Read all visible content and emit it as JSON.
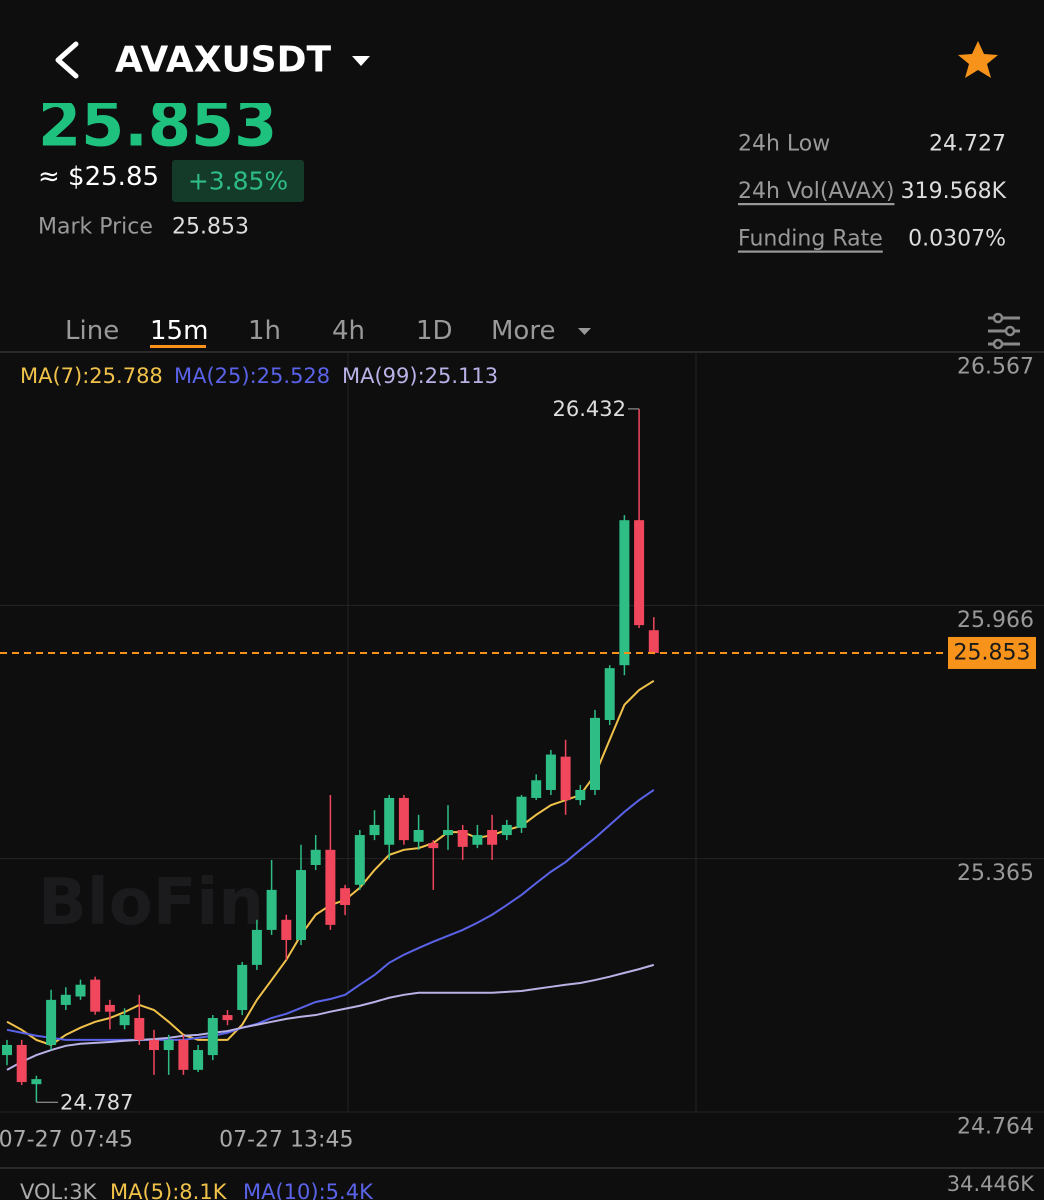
{
  "header": {
    "symbol": "AVAXUSDT",
    "last_price": "25.853",
    "usd_price": "≈ $25.85",
    "change": "+3.85%",
    "mark_price_label": "Mark Price",
    "mark_price": "25.853"
  },
  "stats": [
    {
      "label": "24h Low",
      "value": "24.727"
    },
    {
      "label": "24h Vol(AVAX)",
      "value": "319.568K"
    },
    {
      "label": "Funding Rate",
      "value": "0.0307%"
    }
  ],
  "tabs": [
    "Line",
    "15m",
    "1h",
    "4h",
    "1D",
    "More"
  ],
  "chart_data": {
    "type": "candlestick",
    "watermark": "BloFin",
    "categories": [
      null,
      null,
      null,
      null,
      "07-27 07:45",
      null,
      null,
      null,
      null,
      null,
      null,
      null,
      null,
      null,
      null,
      null,
      null,
      null,
      null,
      "07-27 13:45",
      null,
      null,
      null,
      null,
      null,
      null,
      null,
      null,
      null,
      null,
      null,
      null,
      null,
      null,
      null,
      null,
      null,
      null,
      null,
      null,
      null,
      null,
      null,
      null,
      null
    ],
    "open": [
      24.899,
      24.923,
      24.83,
      24.923,
      25.018,
      25.038,
      25.078,
      25.018,
      24.97,
      24.987,
      24.935,
      24.911,
      24.935,
      24.864,
      24.899,
      24.994,
      25.006,
      25.113,
      25.196,
      25.22,
      25.172,
      25.35,
      25.386,
      25.295,
      25.303,
      25.421,
      25.398,
      25.509,
      25.405,
      25.402,
      25.421,
      25.433,
      25.398,
      25.433,
      25.421,
      25.438,
      25.509,
      25.528,
      25.607,
      25.504,
      25.528,
      25.694,
      25.824,
      26.168,
      25.907
    ],
    "high": [
      24.935,
      24.935,
      24.85,
      25.054,
      25.06,
      25.078,
      25.085,
      25.03,
      25.01,
      25.042,
      24.959,
      24.947,
      24.947,
      24.923,
      24.994,
      25.006,
      25.12,
      25.22,
      25.362,
      25.232,
      25.398,
      25.421,
      25.516,
      25.303,
      25.433,
      25.48,
      25.516,
      25.516,
      25.469,
      25.409,
      25.492,
      25.445,
      25.445,
      25.469,
      25.457,
      25.516,
      25.565,
      25.623,
      25.647,
      25.54,
      25.718,
      25.824,
      26.18,
      26.432,
      25.938
    ],
    "low": [
      24.875,
      24.828,
      24.787,
      24.911,
      25.006,
      25.03,
      24.995,
      24.96,
      24.96,
      24.923,
      24.852,
      24.852,
      24.852,
      24.859,
      24.887,
      24.97,
      24.994,
      25.101,
      25.184,
      25.125,
      25.16,
      25.338,
      25.196,
      25.231,
      25.291,
      25.409,
      25.362,
      25.398,
      25.386,
      25.291,
      25.386,
      25.362,
      25.39,
      25.362,
      25.409,
      25.426,
      25.504,
      25.516,
      25.469,
      25.492,
      25.516,
      25.682,
      25.8,
      25.912,
      25.85
    ],
    "close": [
      24.923,
      24.835,
      24.842,
      25.03,
      25.042,
      25.066,
      25.002,
      25.002,
      24.994,
      24.935,
      24.911,
      24.935,
      24.864,
      24.911,
      24.987,
      24.982,
      25.113,
      25.196,
      25.291,
      25.172,
      25.338,
      25.386,
      25.208,
      25.255,
      25.421,
      25.445,
      25.509,
      25.409,
      25.433,
      25.39,
      25.433,
      25.393,
      25.421,
      25.398,
      25.445,
      25.512,
      25.551,
      25.612,
      25.504,
      25.528,
      25.699,
      25.817,
      26.168,
      25.919,
      25.853
    ],
    "up_color": "#2ebd85",
    "down_color": "#f0475d",
    "series": [
      {
        "name": "MA(7):25.788",
        "color": "#f0c24a",
        "values": [
          24.978,
          24.959,
          24.935,
          24.923,
          24.947,
          24.964,
          24.978,
          24.987,
          25.001,
          25.018,
          25.006,
          24.978,
          24.947,
          24.935,
          24.935,
          24.935,
          24.971,
          25.03,
          25.077,
          25.125,
          25.184,
          25.232,
          25.255,
          25.267,
          25.296,
          25.338,
          25.374,
          25.386,
          25.39,
          25.402,
          25.428,
          25.428,
          25.414,
          25.421,
          25.433,
          25.443,
          25.469,
          25.492,
          25.504,
          25.516,
          25.564,
          25.647,
          25.73,
          25.765,
          25.787
        ]
      },
      {
        "name": "MA(25):25.528",
        "color": "#5a63e8",
        "values": [
          24.959,
          24.952,
          24.945,
          24.94,
          24.935,
          24.935,
          24.935,
          24.935,
          24.935,
          24.935,
          24.935,
          24.935,
          24.935,
          24.94,
          24.945,
          24.952,
          24.964,
          24.973,
          24.987,
          24.997,
          25.011,
          25.025,
          25.032,
          25.042,
          25.066,
          25.089,
          25.118,
          25.137,
          25.153,
          25.168,
          25.182,
          25.196,
          25.213,
          25.232,
          25.255,
          25.279,
          25.307,
          25.334,
          25.357,
          25.386,
          25.414,
          25.445,
          25.476,
          25.504,
          25.528
        ]
      },
      {
        "name": "MA(99):25.113",
        "color": "#b8b2e6",
        "values": [
          24.864,
          24.883,
          24.899,
          24.911,
          24.921,
          24.926,
          24.928,
          24.93,
          24.933,
          24.935,
          24.937,
          24.94,
          24.945,
          24.947,
          24.952,
          24.956,
          24.964,
          24.971,
          24.978,
          24.985,
          24.99,
          24.994,
          25.002,
          25.009,
          25.016,
          25.025,
          25.035,
          25.042,
          25.047,
          25.047,
          25.047,
          25.047,
          25.047,
          25.047,
          25.049,
          25.051,
          25.056,
          25.061,
          25.066,
          25.07,
          25.077,
          25.085,
          25.094,
          25.103,
          25.113
        ]
      }
    ],
    "annotations": {
      "last_price": 25.853,
      "high": 26.432,
      "low": 24.787,
      "last_color": "#f7931a"
    },
    "ylim": [
      24.764,
      26.567
    ],
    "yticks": [
      24.764,
      25.365,
      25.966,
      26.567
    ],
    "grid": true,
    "volume": {
      "vol": "VOL:3K",
      "ma5": "MA(5):8.1K",
      "ma10": "MA(10):5.4K",
      "max": "34.446K"
    }
  }
}
